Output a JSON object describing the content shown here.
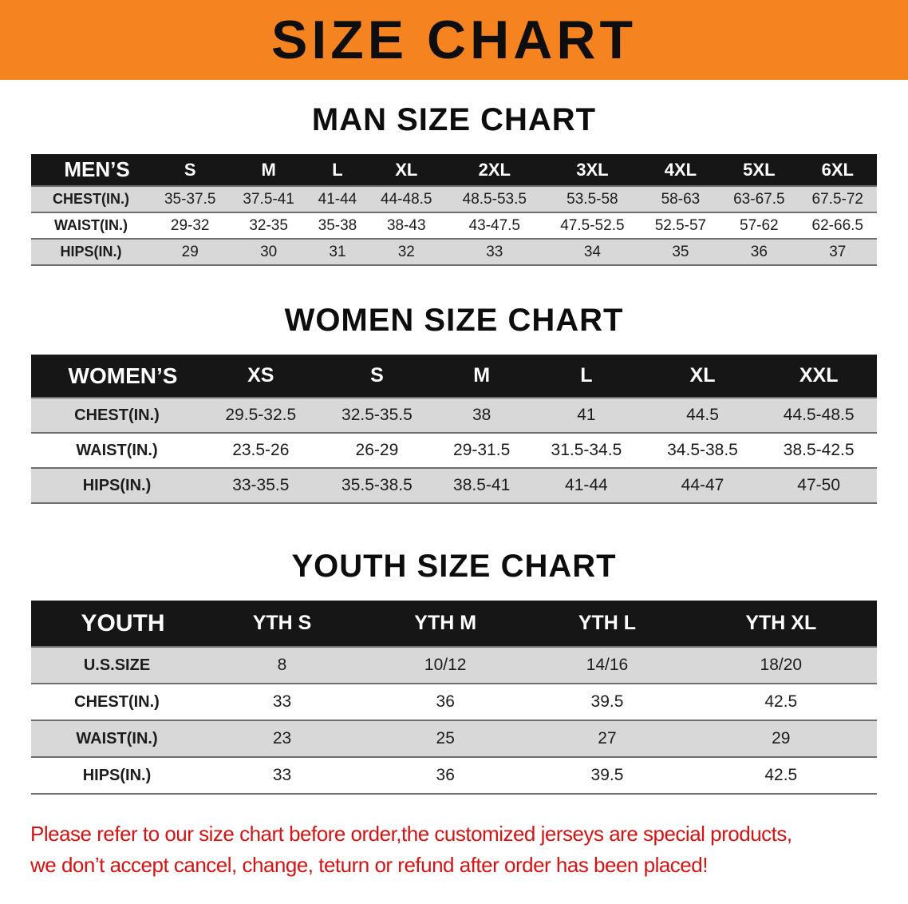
{
  "banner": {
    "title": "SIZE CHART"
  },
  "men": {
    "heading": "MAN SIZE CHART",
    "table": {
      "title": "MEN’S",
      "sizes": [
        "S",
        "M",
        "L",
        "XL",
        "2XL",
        "3XL",
        "4XL",
        "5XL",
        "6XL"
      ],
      "rows": [
        {
          "label": "CHEST(IN.)",
          "values": [
            "35-37.5",
            "37.5-41",
            "41-44",
            "44-48.5",
            "48.5-53.5",
            "53.5-58",
            "58-63",
            "63-67.5",
            "67.5-72"
          ]
        },
        {
          "label": "WAIST(IN.)",
          "values": [
            "29-32",
            "32-35",
            "35-38",
            "38-43",
            "43-47.5",
            "47.5-52.5",
            "52.5-57",
            "57-62",
            "62-66.5"
          ]
        },
        {
          "label": "HIPS(IN.)",
          "values": [
            "29",
            "30",
            "31",
            "32",
            "33",
            "34",
            "35",
            "36",
            "37"
          ]
        }
      ]
    }
  },
  "women": {
    "heading": "WOMEN SIZE CHART",
    "table": {
      "title": "WOMEN’S",
      "sizes": [
        "XS",
        "S",
        "M",
        "L",
        "XL",
        "XXL"
      ],
      "rows": [
        {
          "label": "CHEST(IN.)",
          "values": [
            "29.5-32.5",
            "32.5-35.5",
            "38",
            "41",
            "44.5",
            "44.5-48.5"
          ]
        },
        {
          "label": "WAIST(IN.)",
          "values": [
            "23.5-26",
            "26-29",
            "29-31.5",
            "31.5-34.5",
            "34.5-38.5",
            "38.5-42.5"
          ]
        },
        {
          "label": "HIPS(IN.)",
          "values": [
            "33-35.5",
            "35.5-38.5",
            "38.5-41",
            "41-44",
            "44-47",
            "47-50"
          ]
        }
      ]
    }
  },
  "youth": {
    "heading": "YOUTH SIZE CHART",
    "table": {
      "title": "YOUTH",
      "sizes": [
        "YTH S",
        "YTH M",
        "YTH L",
        "YTH XL"
      ],
      "rows": [
        {
          "label": "U.S.SIZE",
          "values": [
            "8",
            "10/12",
            "14/16",
            "18/20"
          ]
        },
        {
          "label": "CHEST(IN.)",
          "values": [
            "33",
            "36",
            "39.5",
            "42.5"
          ]
        },
        {
          "label": "WAIST(IN.)",
          "values": [
            "23",
            "25",
            "27",
            "29"
          ]
        },
        {
          "label": "HIPS(IN.)",
          "values": [
            "33",
            "36",
            "39.5",
            "42.5"
          ]
        }
      ]
    }
  },
  "disclaimer": {
    "line1": "Please refer to our size chart before order,the customized jerseys are special products,",
    "line2": "we don’t accept cancel, change, teturn or refund after order has been placed!"
  },
  "colors": {
    "banner_bg": "#f5831f",
    "header_bg": "#161616",
    "row_alt": "#d8d8d8",
    "disclaimer_color": "#d31414"
  }
}
